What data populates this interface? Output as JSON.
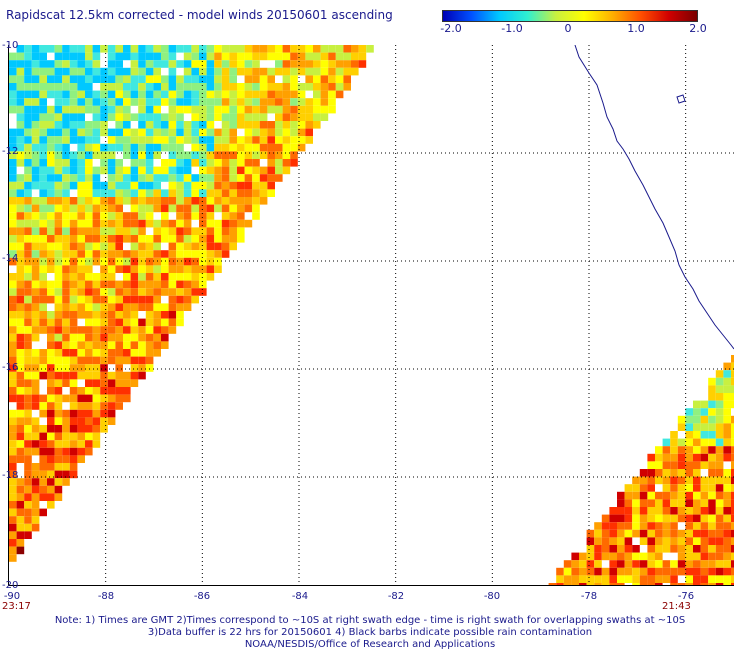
{
  "header": {
    "title": "Rapidscat 12.5km corrected - model winds 20150601 ascending"
  },
  "colorbar": {
    "labels": [
      "-2.0",
      "-1.0",
      "0",
      "1.0",
      "2.0"
    ],
    "range": [
      -2.0,
      2.0
    ]
  },
  "axes": {
    "lat_labels": [
      "-10",
      "-12",
      "-14",
      "-16",
      "-18",
      "-20"
    ],
    "lon_labels": [
      "-90",
      "-88",
      "-86",
      "-84",
      "-82",
      "-80",
      "-78",
      "-76"
    ],
    "lat_range": [
      -20,
      -10
    ],
    "lon_range": [
      -90,
      -75
    ]
  },
  "times": {
    "left": "23:17",
    "right": "21:43"
  },
  "notes": {
    "line1": "Note: 1) Times are GMT 2)Times correspond to ~10S at right swath edge - time is right swath for overlapping swaths at ~10S",
    "line2": "3)Data buffer is 22 hrs for 20150601 4) Black barbs indicate possible rain contamination",
    "line3": "NOAA/NESDIS/Office of Research and Applications"
  }
}
